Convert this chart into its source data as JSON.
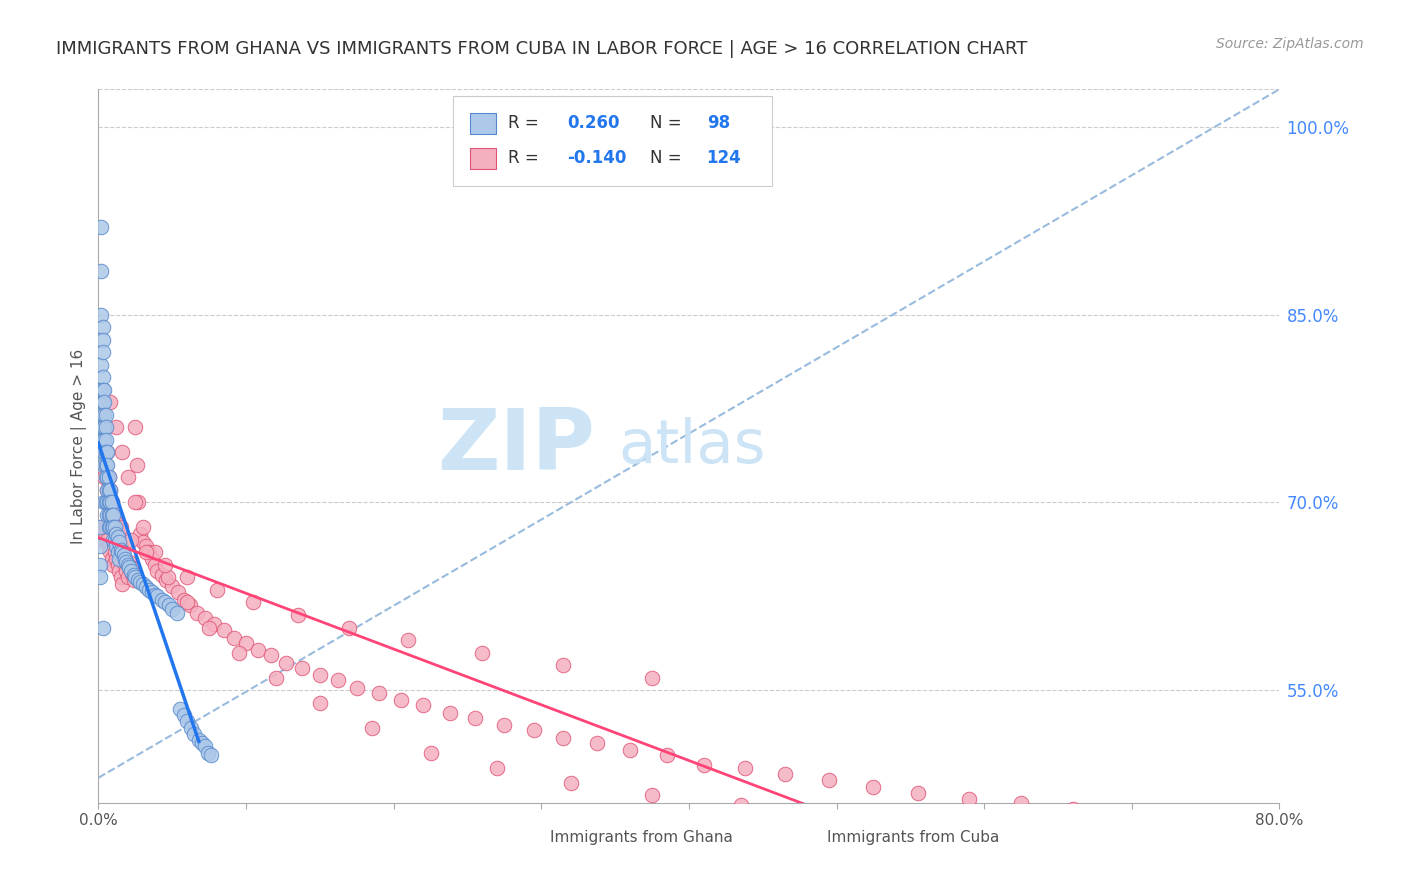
{
  "title": "IMMIGRANTS FROM GHANA VS IMMIGRANTS FROM CUBA IN LABOR FORCE | AGE > 16 CORRELATION CHART",
  "source": "Source: ZipAtlas.com",
  "ylabel": "In Labor Force | Age > 16",
  "right_yticks": [
    0.55,
    0.7,
    0.85,
    1.0
  ],
  "xlim": [
    0.0,
    0.8
  ],
  "ylim": [
    0.46,
    1.03
  ],
  "ghana_color": "#adc8e8",
  "cuba_color": "#f5b0c0",
  "ghana_edge_color": "#5588cc",
  "cuba_edge_color": "#e05575",
  "ghana_R": 0.26,
  "ghana_N": 98,
  "cuba_R": -0.14,
  "cuba_N": 124,
  "ghana_line_color": "#2277ee",
  "cuba_line_color": "#ff4477",
  "ref_line_color": "#99bbdd",
  "legend_color": "#2277ee",
  "title_color": "#333333",
  "right_axis_color": "#4488ff",
  "watermark_color": "#cce4f5",
  "ghana_scatter_x": [
    0.001,
    0.001,
    0.001,
    0.001,
    0.002,
    0.002,
    0.002,
    0.002,
    0.002,
    0.002,
    0.002,
    0.003,
    0.003,
    0.003,
    0.003,
    0.003,
    0.003,
    0.003,
    0.003,
    0.003,
    0.003,
    0.004,
    0.004,
    0.004,
    0.004,
    0.004,
    0.004,
    0.004,
    0.004,
    0.005,
    0.005,
    0.005,
    0.005,
    0.005,
    0.005,
    0.005,
    0.006,
    0.006,
    0.006,
    0.006,
    0.006,
    0.006,
    0.007,
    0.007,
    0.007,
    0.007,
    0.007,
    0.008,
    0.008,
    0.008,
    0.008,
    0.009,
    0.009,
    0.009,
    0.01,
    0.01,
    0.01,
    0.011,
    0.011,
    0.012,
    0.012,
    0.013,
    0.013,
    0.014,
    0.014,
    0.015,
    0.016,
    0.017,
    0.018,
    0.019,
    0.02,
    0.021,
    0.022,
    0.024,
    0.025,
    0.027,
    0.028,
    0.03,
    0.032,
    0.034,
    0.036,
    0.038,
    0.04,
    0.043,
    0.045,
    0.048,
    0.05,
    0.053,
    0.055,
    0.058,
    0.06,
    0.063,
    0.065,
    0.068,
    0.07,
    0.072,
    0.074,
    0.076
  ],
  "ghana_scatter_y": [
    0.68,
    0.665,
    0.65,
    0.64,
    0.92,
    0.885,
    0.85,
    0.81,
    0.79,
    0.78,
    0.76,
    0.84,
    0.83,
    0.82,
    0.8,
    0.79,
    0.78,
    0.76,
    0.75,
    0.74,
    0.6,
    0.79,
    0.78,
    0.77,
    0.76,
    0.75,
    0.74,
    0.73,
    0.7,
    0.77,
    0.76,
    0.75,
    0.74,
    0.73,
    0.72,
    0.7,
    0.74,
    0.73,
    0.72,
    0.71,
    0.7,
    0.69,
    0.72,
    0.71,
    0.7,
    0.69,
    0.68,
    0.71,
    0.7,
    0.69,
    0.68,
    0.7,
    0.69,
    0.68,
    0.69,
    0.68,
    0.67,
    0.68,
    0.67,
    0.675,
    0.665,
    0.672,
    0.66,
    0.668,
    0.655,
    0.662,
    0.66,
    0.658,
    0.655,
    0.652,
    0.65,
    0.648,
    0.645,
    0.642,
    0.64,
    0.638,
    0.636,
    0.635,
    0.632,
    0.63,
    0.628,
    0.626,
    0.625,
    0.622,
    0.62,
    0.618,
    0.615,
    0.612,
    0.535,
    0.53,
    0.525,
    0.52,
    0.515,
    0.51,
    0.508,
    0.505,
    0.5,
    0.498
  ],
  "cuba_scatter_x": [
    0.003,
    0.004,
    0.004,
    0.005,
    0.005,
    0.005,
    0.006,
    0.006,
    0.006,
    0.007,
    0.007,
    0.007,
    0.008,
    0.008,
    0.008,
    0.009,
    0.009,
    0.009,
    0.01,
    0.01,
    0.01,
    0.011,
    0.011,
    0.012,
    0.012,
    0.013,
    0.013,
    0.014,
    0.014,
    0.015,
    0.015,
    0.016,
    0.016,
    0.017,
    0.018,
    0.019,
    0.02,
    0.021,
    0.022,
    0.023,
    0.024,
    0.025,
    0.026,
    0.027,
    0.028,
    0.03,
    0.032,
    0.034,
    0.036,
    0.038,
    0.04,
    0.043,
    0.046,
    0.05,
    0.054,
    0.058,
    0.062,
    0.067,
    0.072,
    0.078,
    0.085,
    0.092,
    0.1,
    0.108,
    0.117,
    0.127,
    0.138,
    0.15,
    0.162,
    0.175,
    0.19,
    0.205,
    0.22,
    0.238,
    0.255,
    0.275,
    0.295,
    0.315,
    0.338,
    0.36,
    0.385,
    0.41,
    0.438,
    0.465,
    0.495,
    0.525,
    0.555,
    0.59,
    0.625,
    0.66,
    0.008,
    0.012,
    0.016,
    0.02,
    0.025,
    0.03,
    0.038,
    0.047,
    0.06,
    0.075,
    0.095,
    0.12,
    0.15,
    0.185,
    0.225,
    0.27,
    0.32,
    0.375,
    0.435,
    0.5,
    0.008,
    0.015,
    0.022,
    0.032,
    0.045,
    0.06,
    0.08,
    0.105,
    0.135,
    0.17,
    0.21,
    0.26,
    0.315,
    0.375
  ],
  "cuba_scatter_y": [
    0.68,
    0.72,
    0.67,
    0.76,
    0.73,
    0.68,
    0.74,
    0.71,
    0.67,
    0.72,
    0.7,
    0.665,
    0.71,
    0.695,
    0.66,
    0.7,
    0.685,
    0.655,
    0.695,
    0.68,
    0.65,
    0.685,
    0.66,
    0.68,
    0.655,
    0.675,
    0.65,
    0.67,
    0.645,
    0.665,
    0.64,
    0.66,
    0.635,
    0.655,
    0.65,
    0.645,
    0.64,
    0.652,
    0.648,
    0.643,
    0.638,
    0.76,
    0.73,
    0.7,
    0.675,
    0.668,
    0.665,
    0.66,
    0.655,
    0.65,
    0.645,
    0.642,
    0.638,
    0.633,
    0.628,
    0.622,
    0.618,
    0.612,
    0.608,
    0.603,
    0.598,
    0.592,
    0.588,
    0.582,
    0.578,
    0.572,
    0.568,
    0.562,
    0.558,
    0.552,
    0.548,
    0.542,
    0.538,
    0.532,
    0.528,
    0.522,
    0.518,
    0.512,
    0.508,
    0.502,
    0.498,
    0.49,
    0.488,
    0.483,
    0.478,
    0.473,
    0.468,
    0.463,
    0.46,
    0.455,
    0.78,
    0.76,
    0.74,
    0.72,
    0.7,
    0.68,
    0.66,
    0.64,
    0.62,
    0.6,
    0.58,
    0.56,
    0.54,
    0.52,
    0.5,
    0.488,
    0.476,
    0.466,
    0.458,
    0.45,
    0.69,
    0.68,
    0.67,
    0.66,
    0.65,
    0.64,
    0.63,
    0.62,
    0.61,
    0.6,
    0.59,
    0.58,
    0.57,
    0.56
  ]
}
